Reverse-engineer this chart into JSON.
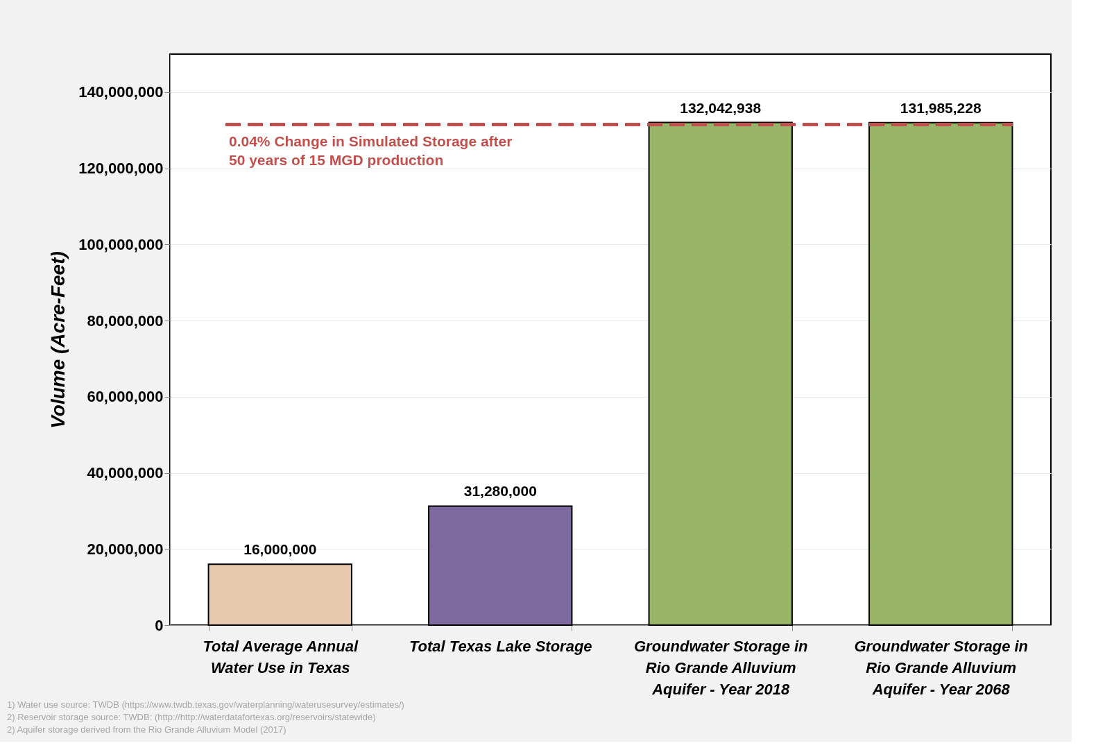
{
  "chart_data": {
    "type": "bar",
    "ylabel": "Volume (Acre-Feet)",
    "categories": [
      "Total Average Annual Water Use in Texas",
      "Total Texas Lake Storage",
      "Groundwater Storage in Rio Grande Alluvium Aquifer - Year 2018",
      "Groundwater Storage in Rio Grande Alluvium Aquifer - Year 2068"
    ],
    "values": [
      16000000,
      31280000,
      132042938,
      131985228
    ],
    "colors": [
      "#e6c9ae",
      "#7f6a9f",
      "#98b466",
      "#98b466"
    ],
    "value_labels": [
      "16,000,000",
      "31,280,000",
      "132,042,938",
      "131,985,228"
    ],
    "ylim": [
      0,
      150000000
    ],
    "yticks": [
      0,
      {
        "value": 20000000,
        "label": "20,000,000"
      },
      {
        "value": 40000000,
        "label": "40,000,000"
      },
      {
        "value": 60000000,
        "label": "60,000,000"
      },
      {
        "value": 80000000,
        "label": "80,000,000"
      },
      {
        "value": 100000000,
        "label": "100,000,000"
      },
      {
        "value": 120000000,
        "label": "120,000,000"
      },
      {
        "value": 140000000,
        "label": "140,000,000"
      }
    ],
    "grid": "y",
    "ref_lines": [
      {
        "axis": "y",
        "value": 131500000,
        "label": "0.04% Change in Simulated Storage after\n50 years of 15 MGD production",
        "color": "#c0504d",
        "line_style": "dashed"
      }
    ],
    "annotations": [
      "1) Water use source: TWDB (https://www.twdb.texas.gov/waterplanning/waterusesurvey/estimates/)",
      "2) Reservoir storage source: TWDB: (http://http://waterdatafortexas.org/reservoirs/statewide)",
      "2) Aquifer storage derived from the Rio Grande Alluvium Model (2017)"
    ]
  }
}
